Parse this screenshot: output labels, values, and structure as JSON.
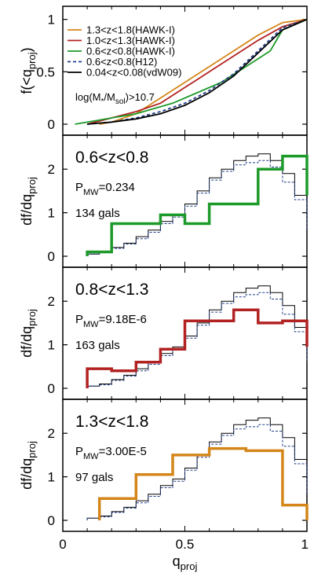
{
  "chart_data": [
    {
      "type": "line",
      "panel": "cumulative",
      "ylabel_main": "f(<q",
      "ylabel_sub": "proj",
      "ylabel_tail": ")",
      "xlim": [
        0,
        1
      ],
      "ylim": [
        0,
        1.05
      ],
      "yticks": [
        "0",
        "0.5",
        "1"
      ],
      "ytick_values": [
        0,
        0.5,
        1
      ],
      "annotation": {
        "main": "log(M",
        "sub1": "*",
        "mid": "/M",
        "sub2": "sol",
        "tail": ")>10.7"
      },
      "legend_position": "top-left",
      "series": [
        {
          "name": "1.3<z<1.8(HAWK-I)",
          "color": "#d4861a",
          "dash": "solid",
          "x": [
            0.15,
            0.2,
            0.3,
            0.4,
            0.5,
            0.6,
            0.7,
            0.8,
            0.9,
            1.0
          ],
          "y": [
            0.0,
            0.02,
            0.1,
            0.25,
            0.4,
            0.55,
            0.7,
            0.85,
            0.97,
            1.0
          ]
        },
        {
          "name": "1.0<z<1.3(HAWK-I)",
          "color": "#b22222",
          "dash": "solid",
          "x": [
            0.1,
            0.2,
            0.3,
            0.4,
            0.5,
            0.6,
            0.7,
            0.8,
            0.9,
            1.0
          ],
          "y": [
            0.0,
            0.06,
            0.12,
            0.2,
            0.35,
            0.5,
            0.65,
            0.8,
            0.93,
            1.0
          ]
        },
        {
          "name": "0.6<z<0.8(HAWK-I)",
          "color": "#1e9a2a",
          "dash": "solid",
          "x": [
            0.05,
            0.15,
            0.3,
            0.45,
            0.55,
            0.65,
            0.75,
            0.85,
            0.9,
            1.0
          ],
          "y": [
            0.0,
            0.04,
            0.1,
            0.2,
            0.3,
            0.4,
            0.55,
            0.7,
            0.9,
            1.0
          ]
        },
        {
          "name": "0.6<z<0.8(H12)",
          "color": "#1f3c88",
          "dash": "dashed",
          "x": [
            0.1,
            0.2,
            0.3,
            0.4,
            0.5,
            0.6,
            0.7,
            0.8,
            0.9,
            1.0
          ],
          "y": [
            0.0,
            0.02,
            0.06,
            0.12,
            0.2,
            0.32,
            0.48,
            0.7,
            0.92,
            1.0
          ]
        },
        {
          "name": "0.04<z<0.08(vdW09)",
          "color": "#000000",
          "dash": "solid",
          "x": [
            0.1,
            0.2,
            0.3,
            0.4,
            0.5,
            0.6,
            0.7,
            0.8,
            0.9,
            1.0
          ],
          "y": [
            0.0,
            0.02,
            0.05,
            0.1,
            0.18,
            0.3,
            0.46,
            0.68,
            0.9,
            1.0
          ]
        }
      ]
    },
    {
      "type": "step",
      "panel": "0.6<z<0.8",
      "title": "0.6<z<0.8",
      "pmw_label": "P",
      "pmw_sub": "MW",
      "pmw_value": "=0.234",
      "gals": "134 gals",
      "color": "#1e9a2a",
      "ylabel_main": "df/dq",
      "ylabel_sub": "proj",
      "ylim": [
        0,
        2.6
      ],
      "yticks": [
        "0",
        "1",
        "2"
      ],
      "ytick_values": [
        0,
        1,
        2
      ],
      "bin_edges": [
        0.1,
        0.2,
        0.3,
        0.4,
        0.5,
        0.6,
        0.7,
        0.8,
        0.9,
        1.0
      ],
      "values": [
        0.1,
        0.75,
        0.75,
        0.95,
        0.75,
        1.2,
        1.2,
        2.0,
        2.3,
        1.4
      ]
    },
    {
      "type": "step",
      "panel": "0.8<z<1.3",
      "title": "0.8<z<1.3",
      "pmw_label": "P",
      "pmw_sub": "MW",
      "pmw_value": "=9.18E-6",
      "gals": "163 gals",
      "color": "#b22222",
      "ylabel_main": "df/dq",
      "ylabel_sub": "proj",
      "ylim": [
        0,
        2.6
      ],
      "yticks": [
        "0",
        "1",
        "2"
      ],
      "ytick_values": [
        0,
        1,
        2
      ],
      "bin_edges": [
        0.1,
        0.2,
        0.3,
        0.4,
        0.5,
        0.6,
        0.7,
        0.8,
        0.9,
        1.0
      ],
      "values": [
        0.45,
        0.4,
        0.6,
        0.9,
        1.55,
        1.55,
        1.8,
        1.5,
        1.55,
        0.95
      ]
    },
    {
      "type": "step",
      "panel": "1.3<z<1.8",
      "title": "1.3<z<1.8",
      "pmw_label": "P",
      "pmw_sub": "MW",
      "pmw_value": "=3.00E-5",
      "gals": "97 gals",
      "color": "#d4861a",
      "ylabel_main": "df/dq",
      "ylabel_sub": "proj",
      "ylim": [
        0,
        2.6
      ],
      "yticks": [
        "0",
        "1",
        "2"
      ],
      "ytick_values": [
        0,
        1,
        2
      ],
      "xticks": [
        "0",
        "0.5",
        "1"
      ],
      "xtick_values": [
        0,
        0.5,
        1
      ],
      "xlabel_main": "q",
      "xlabel_sub": "proj",
      "bin_edges": [
        0.15,
        0.3,
        0.45,
        0.6,
        0.75,
        0.9,
        1.0
      ],
      "values": [
        0.5,
        1.05,
        1.5,
        1.65,
        1.6,
        0.35
      ]
    },
    {
      "type": "step",
      "role": "reference-histograms",
      "series": [
        {
          "name": "reference",
          "color": "#000000",
          "dash": "solid",
          "bin_edges": [
            0.1,
            0.15,
            0.2,
            0.25,
            0.3,
            0.35,
            0.4,
            0.45,
            0.5,
            0.55,
            0.6,
            0.65,
            0.7,
            0.75,
            0.8,
            0.85,
            0.9,
            0.95,
            1.0
          ],
          "values": [
            0.05,
            0.1,
            0.2,
            0.3,
            0.45,
            0.6,
            0.8,
            0.95,
            1.2,
            1.5,
            1.8,
            2.0,
            2.2,
            2.3,
            2.35,
            2.2,
            1.9,
            1.4,
            0.5
          ]
        },
        {
          "name": "reference-dashed",
          "color": "#1f3c88",
          "dash": "dashed",
          "bin_edges": [
            0.1,
            0.15,
            0.2,
            0.25,
            0.3,
            0.35,
            0.4,
            0.45,
            0.5,
            0.55,
            0.6,
            0.65,
            0.7,
            0.75,
            0.8,
            0.85,
            0.9,
            0.95,
            1.0
          ],
          "values": [
            0.05,
            0.08,
            0.18,
            0.28,
            0.4,
            0.55,
            0.75,
            0.9,
            1.15,
            1.45,
            1.75,
            1.95,
            2.1,
            2.15,
            2.2,
            2.05,
            1.7,
            1.3,
            0.6
          ]
        }
      ]
    }
  ]
}
